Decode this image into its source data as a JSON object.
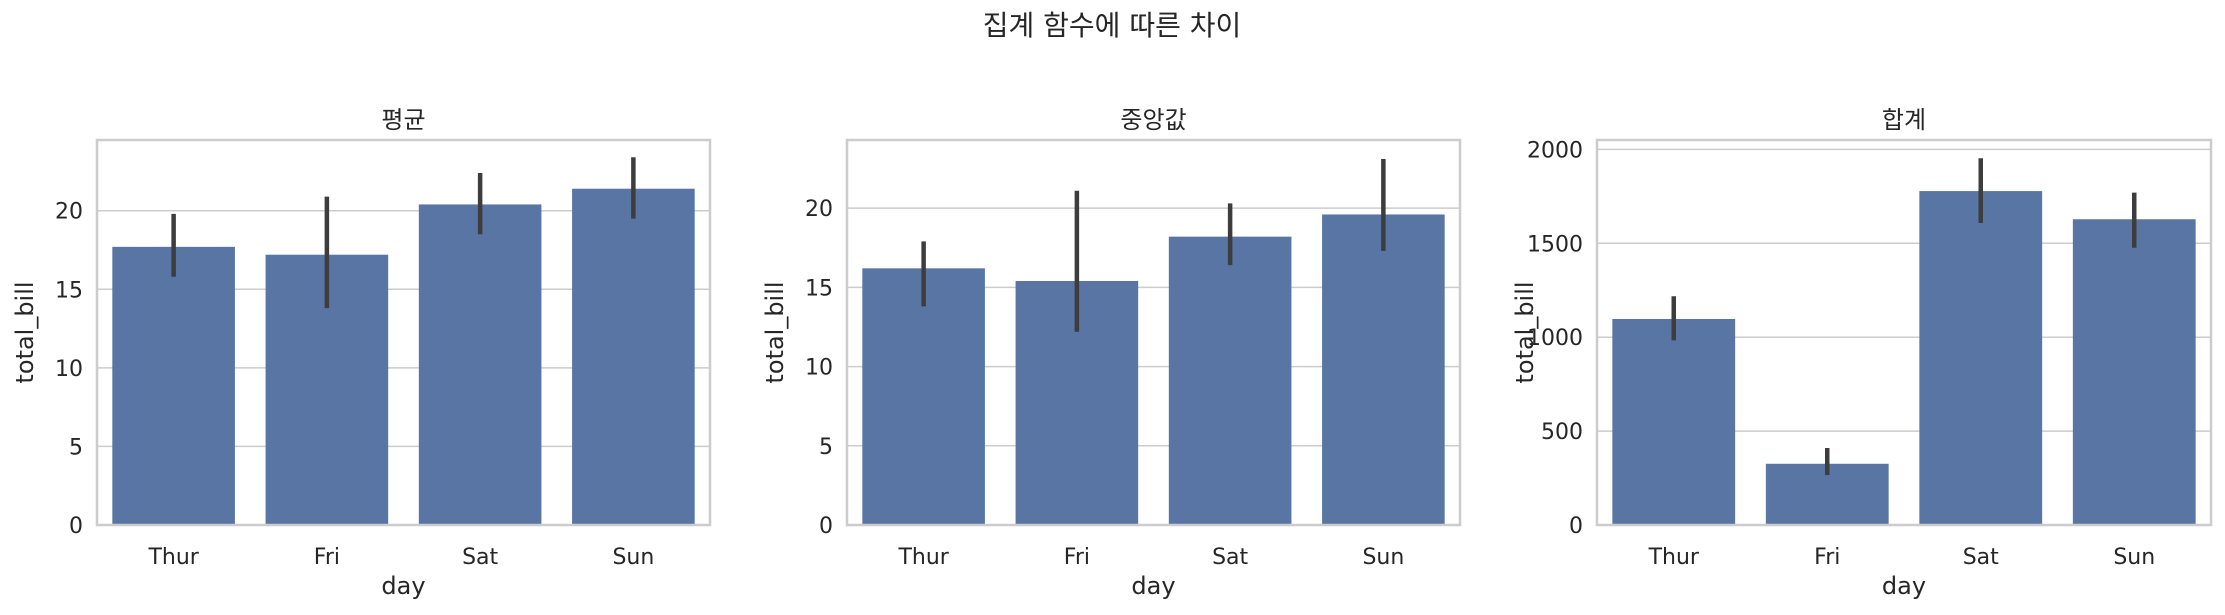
{
  "figure": {
    "suptitle": "집계 함수에 따른 차이"
  },
  "colors": {
    "bar": "#5875a4",
    "errorbar": "#3d3d3d",
    "grid": "#cccccc",
    "frame": "#cccccc",
    "text": "#262626"
  },
  "chart_data": [
    {
      "type": "bar",
      "title": "평균",
      "xlabel": "day",
      "ylabel": "total_bill",
      "categories": [
        "Thur",
        "Fri",
        "Sat",
        "Sun"
      ],
      "values": [
        17.7,
        17.2,
        20.4,
        21.4
      ],
      "errors_low": [
        15.8,
        13.8,
        18.5,
        19.5
      ],
      "errors_high": [
        19.8,
        20.9,
        22.4,
        23.4
      ],
      "ylim": [
        0,
        24.5
      ],
      "yticks": [
        0,
        5,
        10,
        15,
        20
      ],
      "ytick_labels": [
        "0",
        "5",
        "10",
        "15",
        "20"
      ],
      "grid": true
    },
    {
      "type": "bar",
      "title": "중앙값",
      "xlabel": "day",
      "ylabel": "total_bill",
      "categories": [
        "Thur",
        "Fri",
        "Sat",
        "Sun"
      ],
      "values": [
        16.2,
        15.4,
        18.2,
        19.6
      ],
      "errors_low": [
        13.8,
        12.2,
        16.4,
        17.3
      ],
      "errors_high": [
        17.9,
        21.1,
        20.3,
        23.1
      ],
      "ylim": [
        0,
        24.3
      ],
      "yticks": [
        0,
        5,
        10,
        15,
        20
      ],
      "ytick_labels": [
        "0",
        "5",
        "10",
        "15",
        "20"
      ],
      "grid": true
    },
    {
      "type": "bar",
      "title": "합계",
      "xlabel": "day",
      "ylabel": "total_bill",
      "categories": [
        "Thur",
        "Fri",
        "Sat",
        "Sun"
      ],
      "values": [
        1097,
        326,
        1778,
        1628
      ],
      "errors_low": [
        983,
        266,
        1608,
        1476
      ],
      "errors_high": [
        1218,
        410,
        1953,
        1770
      ],
      "ylim": [
        0,
        2050
      ],
      "yticks": [
        0,
        500,
        1000,
        1500,
        2000
      ],
      "ytick_labels": [
        "0",
        "500",
        "1000",
        "1500",
        "2000"
      ],
      "grid": true
    }
  ]
}
